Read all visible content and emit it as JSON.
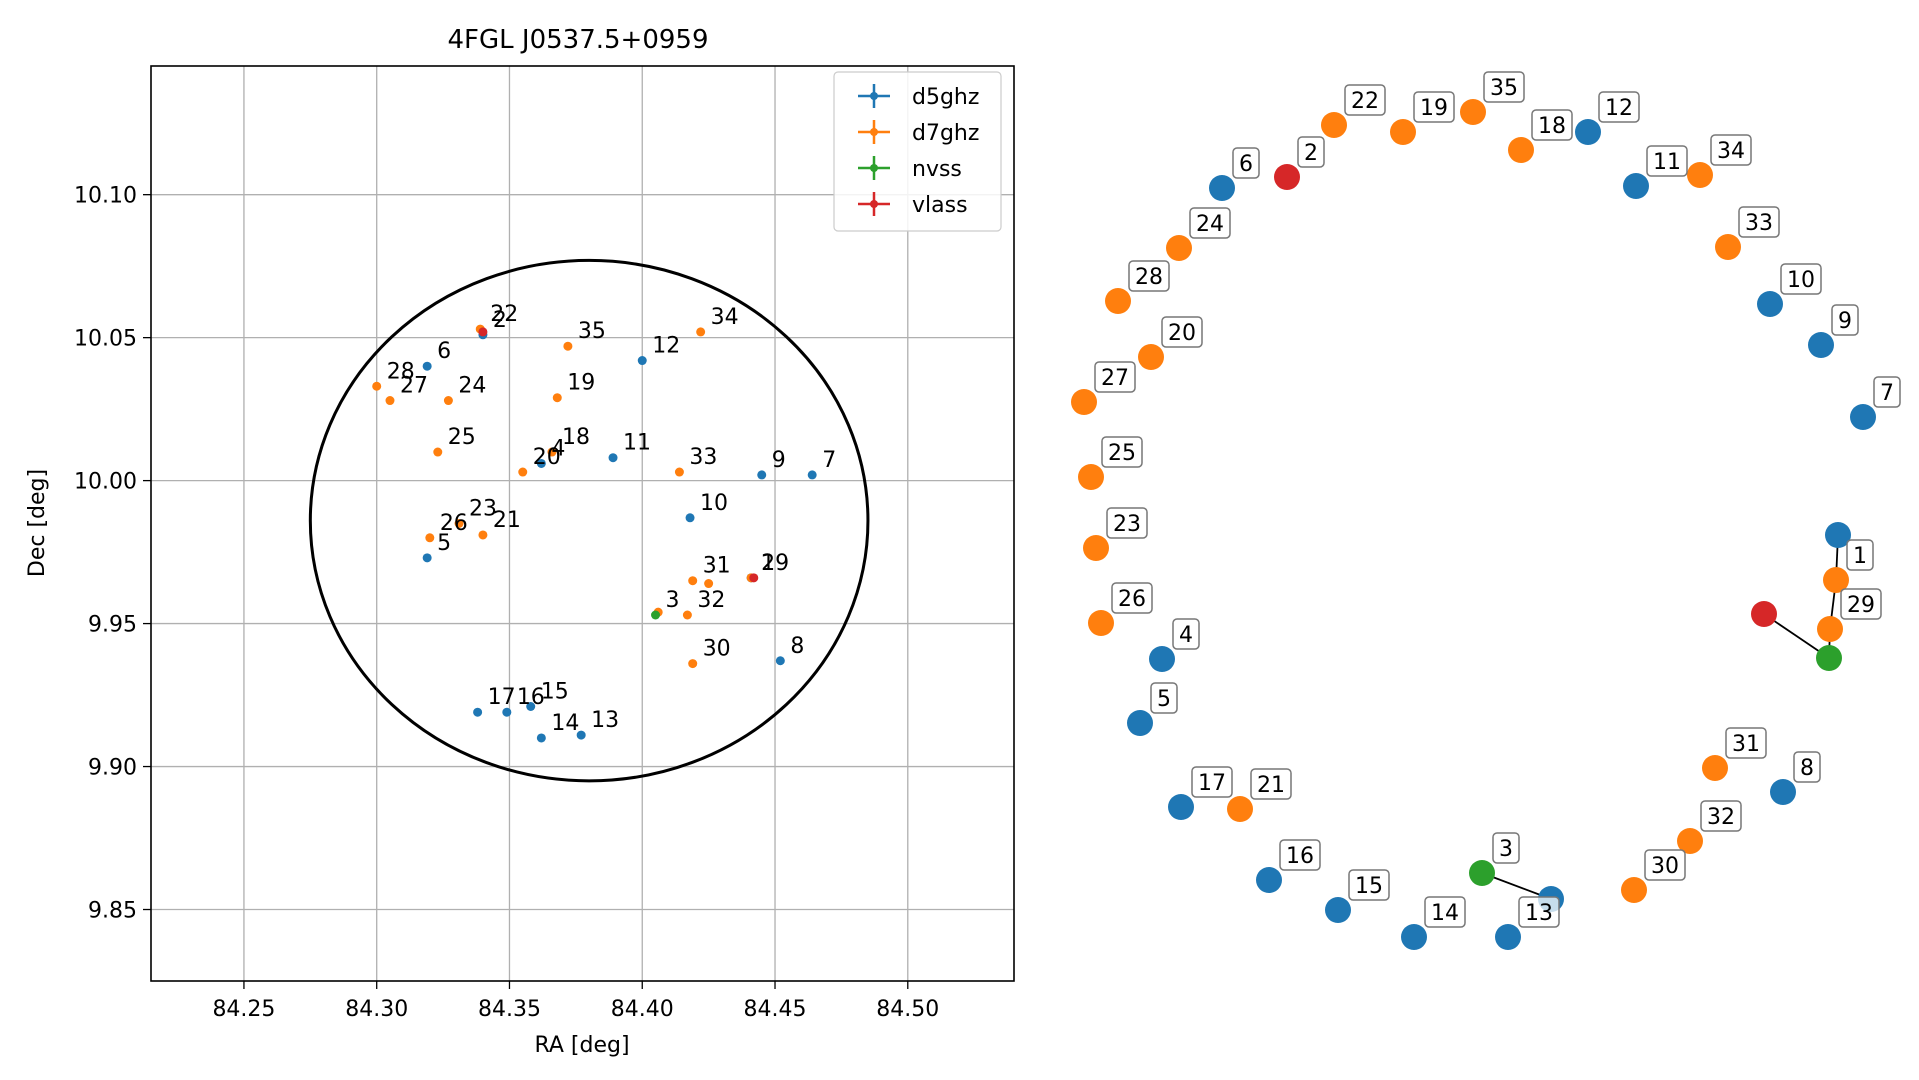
{
  "chart_data": [
    {
      "type": "scatter",
      "title": "4FGL J0537.5+0959",
      "xlabel": "RA [deg]",
      "ylabel": "Dec [deg]",
      "xlim": [
        84.215,
        84.54
      ],
      "ylim": [
        9.825,
        10.145
      ],
      "xticks": [
        "84.25",
        "84.30",
        "84.35",
        "84.40",
        "84.45",
        "84.50"
      ],
      "yticks": [
        "9.85",
        "9.90",
        "9.95",
        "10.00",
        "10.05",
        "10.10"
      ],
      "grid": true,
      "legend_position": "top-right",
      "ellipse": {
        "center": [
          84.38,
          9.986
        ],
        "semi_axis_ra": 0.105,
        "semi_axis_dec": 0.091,
        "color": "#000000"
      },
      "series": [
        {
          "name": "d5ghz",
          "color": "#1f77b4",
          "points": [
            {
              "label": "2",
              "x": 84.34,
              "y": 10.051
            },
            {
              "label": "4",
              "x": 84.362,
              "y": 10.006
            },
            {
              "label": "5",
              "x": 84.319,
              "y": 9.973
            },
            {
              "label": "6",
              "x": 84.319,
              "y": 10.04
            },
            {
              "label": "7",
              "x": 84.464,
              "y": 10.002
            },
            {
              "label": "8",
              "x": 84.452,
              "y": 9.937
            },
            {
              "label": "9",
              "x": 84.445,
              "y": 10.002
            },
            {
              "label": "10",
              "x": 84.418,
              "y": 9.987
            },
            {
              "label": "11",
              "x": 84.389,
              "y": 10.008
            },
            {
              "label": "12",
              "x": 84.4,
              "y": 10.042
            },
            {
              "label": "13",
              "x": 84.377,
              "y": 9.911
            },
            {
              "label": "14",
              "x": 84.362,
              "y": 9.91
            },
            {
              "label": "15",
              "x": 84.358,
              "y": 9.921
            },
            {
              "label": "16",
              "x": 84.349,
              "y": 9.919
            },
            {
              "label": "17",
              "x": 84.338,
              "y": 9.919
            },
            {
              "label": "1",
              "x": 84.441,
              "y": 9.966
            }
          ]
        },
        {
          "name": "d7ghz",
          "color": "#ff7f0e",
          "points": [
            {
              "label": "18",
              "x": 84.366,
              "y": 10.01
            },
            {
              "label": "19",
              "x": 84.368,
              "y": 10.029
            },
            {
              "label": "20",
              "x": 84.355,
              "y": 10.003
            },
            {
              "label": "21",
              "x": 84.34,
              "y": 9.981
            },
            {
              "label": "22",
              "x": 84.339,
              "y": 10.053
            },
            {
              "label": "23",
              "x": 84.331,
              "y": 9.985
            },
            {
              "label": "24",
              "x": 84.327,
              "y": 10.028
            },
            {
              "label": "25",
              "x": 84.323,
              "y": 10.01
            },
            {
              "label": "26",
              "x": 84.32,
              "y": 9.98
            },
            {
              "label": "27",
              "x": 84.305,
              "y": 10.028
            },
            {
              "label": "28",
              "x": 84.3,
              "y": 10.033
            },
            {
              "label": "29",
              "x": 84.441,
              "y": 9.966
            },
            {
              "label": "30",
              "x": 84.419,
              "y": 9.936
            },
            {
              "label": "31",
              "x": 84.419,
              "y": 9.965
            },
            {
              "label": "32",
              "x": 84.417,
              "y": 9.953
            },
            {
              "label": "33",
              "x": 84.414,
              "y": 10.003
            },
            {
              "label": "34",
              "x": 84.422,
              "y": 10.052
            },
            {
              "label": "35",
              "x": 84.372,
              "y": 10.047
            },
            {
              "label": "",
              "x": 84.425,
              "y": 9.964
            },
            {
              "label": "",
              "x": 84.406,
              "y": 9.954
            }
          ]
        },
        {
          "name": "nvss",
          "color": "#2ca02c",
          "points": [
            {
              "label": "3",
              "x": 84.405,
              "y": 9.953
            }
          ]
        },
        {
          "name": "vlass",
          "color": "#d62728",
          "points": [
            {
              "label": "",
              "x": 84.442,
              "y": 9.966
            },
            {
              "label": "",
              "x": 84.34,
              "y": 10.052
            }
          ]
        }
      ]
    },
    {
      "type": "network",
      "node_colors": {
        "d5ghz": "#1f77b4",
        "d7ghz": "#ff7f0e",
        "nvss": "#2ca02c",
        "vlass": "#d62728"
      },
      "nodes": [
        {
          "label": "6",
          "group": "d5ghz"
        },
        {
          "label": "2",
          "group": "vlass"
        },
        {
          "label": "22",
          "group": "d7ghz"
        },
        {
          "label": "19",
          "group": "d7ghz"
        },
        {
          "label": "35",
          "group": "d7ghz"
        },
        {
          "label": "18",
          "group": "d7ghz"
        },
        {
          "label": "12",
          "group": "d5ghz"
        },
        {
          "label": "11",
          "group": "d5ghz"
        },
        {
          "label": "34",
          "group": "d7ghz"
        },
        {
          "label": "24",
          "group": "d7ghz"
        },
        {
          "label": "33",
          "group": "d7ghz"
        },
        {
          "label": "28",
          "group": "d7ghz"
        },
        {
          "label": "10",
          "group": "d5ghz"
        },
        {
          "label": "20",
          "group": "d7ghz"
        },
        {
          "label": "9",
          "group": "d5ghz"
        },
        {
          "label": "27",
          "group": "d7ghz"
        },
        {
          "label": "7",
          "group": "d5ghz"
        },
        {
          "label": "25",
          "group": "d7ghz"
        },
        {
          "label": "23",
          "group": "d7ghz"
        },
        {
          "label": "",
          "group": "d5ghz"
        },
        {
          "label": "1",
          "group": "d7ghz"
        },
        {
          "label": "26",
          "group": "d7ghz"
        },
        {
          "label": "",
          "group": "vlass"
        },
        {
          "label": "29",
          "group": "d7ghz"
        },
        {
          "label": "4",
          "group": "d5ghz"
        },
        {
          "label": "",
          "group": "nvss"
        },
        {
          "label": "5",
          "group": "d5ghz"
        },
        {
          "label": "31",
          "group": "d7ghz"
        },
        {
          "label": "8",
          "group": "d5ghz"
        },
        {
          "label": "17",
          "group": "d5ghz"
        },
        {
          "label": "21",
          "group": "d7ghz"
        },
        {
          "label": "32",
          "group": "d7ghz"
        },
        {
          "label": "16",
          "group": "d5ghz"
        },
        {
          "label": "3",
          "group": "nvss"
        },
        {
          "label": "30",
          "group": "d7ghz"
        },
        {
          "label": "15",
          "group": "d5ghz"
        },
        {
          "label": "",
          "group": "d5ghz"
        },
        {
          "label": "14",
          "group": "d5ghz"
        },
        {
          "label": "13",
          "group": "d5ghz"
        }
      ],
      "edges": [
        [
          19,
          20
        ],
        [
          20,
          23
        ],
        [
          23,
          25
        ],
        [
          22,
          25
        ],
        [
          33,
          36
        ]
      ]
    }
  ]
}
